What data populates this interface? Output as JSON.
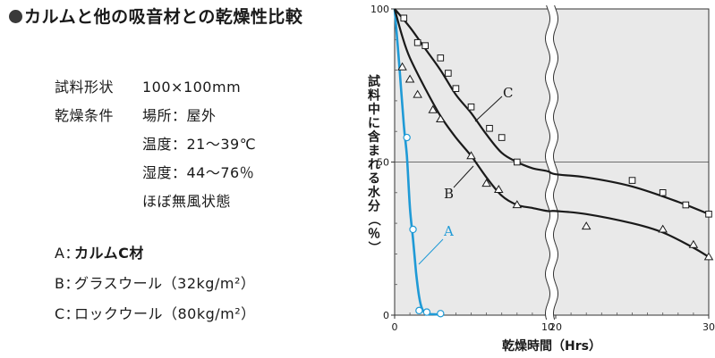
{
  "title": "カルムと他の吸音材との乾燥性比較",
  "conditions": [
    {
      "label": "試料形状",
      "value": "100×100mm"
    },
    {
      "label": "乾燥条件",
      "value": "場所：屋外"
    },
    {
      "label": "",
      "value": "温度：21〜39℃"
    },
    {
      "label": "",
      "value": "湿度：44〜76％"
    },
    {
      "label": "",
      "value": "ほぼ無風状態"
    }
  ],
  "legend": [
    {
      "key": "A：",
      "text": "カルムC材"
    },
    {
      "key": "B：",
      "text": "グラスウール（32kg/m²）"
    },
    {
      "key": "C：",
      "text": "ロックウール（80kg/m²）"
    }
  ],
  "colors": {
    "series_a": "#1f9ad6",
    "series_bc": "#1a1a1a",
    "plot_bg": "#e9e9e9"
  },
  "chart_data": {
    "type": "line",
    "xlabel": "乾燥時間（Hrs）",
    "ylabel": "試料中に含まれる水分（％）",
    "ylim": [
      0,
      100
    ],
    "x_ticks": [
      "0",
      "10",
      "20",
      "30"
    ],
    "y_ticks": [
      "0",
      "50",
      "100"
    ],
    "x_break": [
      10,
      20
    ],
    "grid": "horizontal line at 50",
    "series": [
      {
        "name": "A",
        "curve": [
          [
            0,
            100
          ],
          [
            0.3,
            82
          ],
          [
            0.6,
            62
          ],
          [
            0.8,
            52
          ],
          [
            1.0,
            35
          ],
          [
            1.2,
            25
          ],
          [
            1.4,
            14
          ],
          [
            1.6,
            6
          ],
          [
            1.8,
            2
          ],
          [
            2.1,
            0.5
          ],
          [
            2.5,
            0.3
          ],
          [
            3.0,
            0.2
          ]
        ],
        "markers": [
          [
            0.8,
            58
          ],
          [
            1.2,
            28
          ],
          [
            1.6,
            1.5
          ],
          [
            2.1,
            1
          ],
          [
            3.0,
            0.5
          ]
        ]
      },
      {
        "name": "B",
        "curve": [
          [
            0,
            100
          ],
          [
            0.5,
            91
          ],
          [
            1,
            84
          ],
          [
            2,
            74
          ],
          [
            3,
            65
          ],
          [
            4,
            58
          ],
          [
            5,
            52
          ],
          [
            6,
            45
          ],
          [
            7,
            39
          ],
          [
            8,
            36
          ],
          [
            9,
            35
          ],
          [
            10,
            34
          ],
          [
            20,
            34
          ],
          [
            22,
            33
          ],
          [
            25,
            30
          ],
          [
            27,
            27
          ],
          [
            29,
            22
          ],
          [
            30,
            19
          ]
        ],
        "markers": [
          [
            0.5,
            81
          ],
          [
            1,
            77
          ],
          [
            1.5,
            72
          ],
          [
            2.5,
            67
          ],
          [
            3,
            64
          ],
          [
            5,
            52
          ],
          [
            6,
            43
          ],
          [
            6.8,
            41
          ],
          [
            8,
            36
          ],
          [
            22,
            29
          ],
          [
            27,
            28
          ],
          [
            29,
            23
          ],
          [
            30,
            19
          ]
        ]
      },
      {
        "name": "C",
        "curve": [
          [
            0,
            100
          ],
          [
            1,
            94
          ],
          [
            2,
            87
          ],
          [
            3,
            80
          ],
          [
            4,
            72
          ],
          [
            5,
            66
          ],
          [
            6,
            59
          ],
          [
            7,
            53
          ],
          [
            8,
            50
          ],
          [
            9,
            48
          ],
          [
            10,
            47
          ],
          [
            20,
            46
          ],
          [
            22,
            45
          ],
          [
            25,
            42
          ],
          [
            28,
            37
          ],
          [
            30,
            33
          ]
        ],
        "markers": [
          [
            0.6,
            97
          ],
          [
            1.5,
            89
          ],
          [
            2,
            88
          ],
          [
            3,
            84
          ],
          [
            3.5,
            79
          ],
          [
            4,
            74
          ],
          [
            5,
            68
          ],
          [
            6.2,
            61
          ],
          [
            7,
            58
          ],
          [
            8,
            50
          ],
          [
            25,
            44
          ],
          [
            27,
            40
          ],
          [
            28.5,
            36
          ],
          [
            30,
            33
          ]
        ]
      }
    ]
  }
}
